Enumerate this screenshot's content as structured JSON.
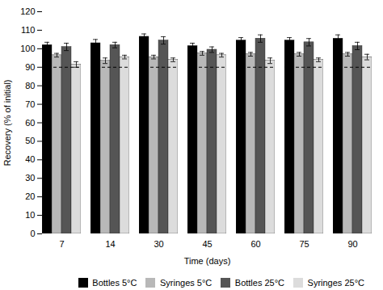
{
  "chart_data": {
    "type": "bar",
    "xlabel": "Time (days)",
    "ylabel": "Recovery (% of initial)",
    "categories": [
      "7",
      "14",
      "30",
      "45",
      "60",
      "75",
      "90"
    ],
    "series": [
      {
        "name": "Bottles 5°C",
        "color": "#000000",
        "values": [
          102.0,
          103.0,
          106.5,
          101.5,
          104.5,
          104.5,
          105.5
        ],
        "errors": [
          1.5,
          2.0,
          1.5,
          1.5,
          1.5,
          1.5,
          2.0
        ]
      },
      {
        "name": "Syringes 5°C",
        "color": "#b8b8b8",
        "values": [
          96.5,
          93.5,
          95.5,
          97.5,
          97.0,
          97.0,
          97.0
        ],
        "errors": [
          1.0,
          1.5,
          1.0,
          1.0,
          1.0,
          1.0,
          1.0
        ]
      },
      {
        "name": "Bottles 25°C",
        "color": "#555555",
        "values": [
          101.0,
          102.0,
          104.5,
          99.5,
          105.5,
          103.5,
          101.5
        ],
        "errors": [
          2.0,
          1.5,
          2.0,
          1.5,
          2.0,
          2.0,
          2.0
        ]
      },
      {
        "name": "Syringes 25°C",
        "color": "#dcdcdc",
        "values": [
          91.5,
          95.5,
          94.0,
          96.5,
          93.5,
          94.0,
          95.5
        ],
        "errors": [
          1.5,
          1.0,
          1.0,
          1.0,
          1.5,
          1.0,
          1.5
        ]
      }
    ],
    "hline": 90,
    "ylim": [
      0,
      120
    ],
    "yticks": [
      0,
      10,
      20,
      30,
      40,
      50,
      60,
      70,
      80,
      90,
      100,
      110,
      120
    ],
    "grid": false,
    "legend": "lower right"
  }
}
